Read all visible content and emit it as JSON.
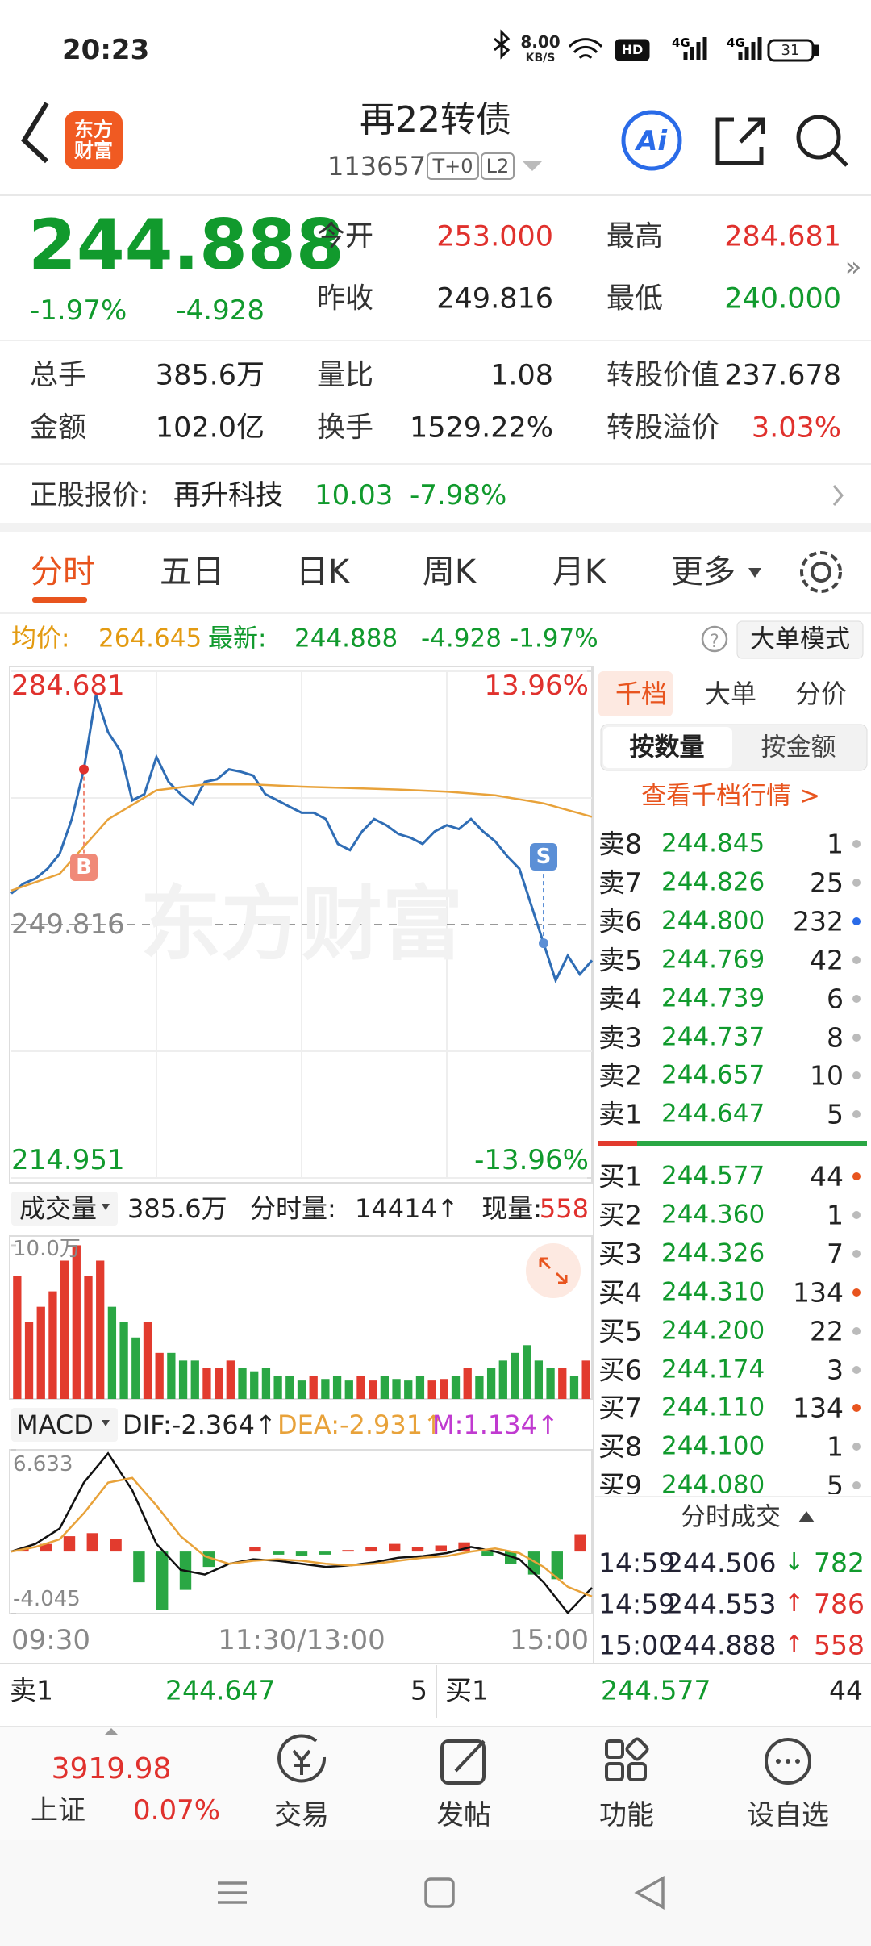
{
  "status_bar": {
    "time": "20:23",
    "net_speed": "8.00",
    "net_unit": "KB/S",
    "battery": "31"
  },
  "header": {
    "logo": "东方财富",
    "title": "再22转债",
    "code": "113657",
    "tags": [
      "T+0",
      "L2"
    ]
  },
  "quote": {
    "price": "244.888",
    "change_pct": "-1.97%",
    "change": "-4.928",
    "fields": [
      [
        "今开",
        "253.000"
      ],
      [
        "最高",
        "284.681"
      ],
      [
        "昨收",
        "249.816"
      ],
      [
        "最低",
        "240.000"
      ],
      [
        "总手",
        "385.6万"
      ],
      [
        "量比",
        "1.08"
      ],
      [
        "转股价值",
        "237.678"
      ],
      [
        "金额",
        "102.0亿"
      ],
      [
        "换手",
        "1529.22%"
      ],
      [
        "转股溢价",
        "3.03%"
      ]
    ]
  },
  "stock_ref": {
    "label": "正股报价:",
    "name": "再升科技",
    "price": "10.03",
    "pct": "-7.98%"
  },
  "tabs": [
    "分时",
    "五日",
    "日K",
    "周K",
    "月K",
    "更多"
  ],
  "info_bar": {
    "avg_label": "均价:",
    "avg": "264.645",
    "latest_label": "最新:",
    "latest": "244.888",
    "change": "-4.928",
    "pct": "-1.97%",
    "mode": "大单模式"
  },
  "price_chart": {
    "type": "line",
    "watermark": "东方财富",
    "ylim": [
      214.951,
      284.681
    ],
    "yticks": [
      284.681,
      249.816,
      214.951
    ],
    "y2lim": [
      -13.96,
      13.96
    ],
    "y2ticks": [
      {
        "value": 13.96,
        "label": "13.96%"
      },
      {
        "value": -13.96,
        "label": "-13.96%"
      }
    ],
    "annotations": [
      {
        "label": "B"
      },
      {
        "label": "S"
      }
    ],
    "series": [
      {
        "color": "#2f6db5",
        "values": [
          254.09,
          255.46,
          256.14,
          257.51,
          259.56,
          264.34,
          271.18,
          281.43,
          276.31,
          273.74,
          266.91,
          267.76,
          272.89,
          269.47,
          267.76,
          266.39,
          269.47,
          269.81,
          271.18,
          270.84,
          270.32,
          267.76,
          266.91,
          266.05,
          265.2,
          265.2,
          264.34,
          260.92,
          260.07,
          262.63,
          264.34,
          263.49,
          262.29,
          261.78,
          260.92,
          262.63,
          263.49,
          262.97,
          264.34,
          262.63,
          261.27,
          259.22,
          257.51,
          252.38,
          247.25,
          242.13,
          245.54,
          242.98,
          244.888
        ]
      },
      {
        "color": "#e8a23a",
        "values": [
          254.5,
          256.8,
          264.3,
          268.3,
          269.1,
          269.1,
          268.8,
          268.6,
          268.4,
          268.1,
          267.6,
          266.5,
          264.645
        ]
      }
    ]
  },
  "volume_chart": {
    "type": "bar",
    "label": "成交量",
    "total": "385.6万",
    "tick_label": "分时量:",
    "tick_value": "14414↑",
    "now_label": "现量:",
    "now_value": "558",
    "ylim": [
      0,
      10.6
    ],
    "yticks": [
      {
        "value": 10,
        "label": "10.0万"
      }
    ],
    "values": [
      8,
      5,
      6,
      7,
      9,
      10,
      8,
      9,
      6,
      5,
      4,
      5,
      3,
      3,
      2.5,
      2.5,
      2,
      2,
      2.5,
      2,
      1.8,
      2,
      1.5,
      1.5,
      1.2,
      1.5,
      1.3,
      1.5,
      1.2,
      1.5,
      1.2,
      1.5,
      1.3,
      1.2,
      1.5,
      1.2,
      1.3,
      1.5,
      2,
      1.5,
      2,
      2.5,
      3,
      3.5,
      2.5,
      2,
      2,
      1.5,
      2.5
    ]
  },
  "macd_chart": {
    "type": "bar",
    "label": "MACD",
    "dif_label": "DIF:-2.364↑",
    "dea_label": "DEA:-2.931↑",
    "m_label": "M:1.134↑",
    "ylim": [
      -4.045,
      6.633
    ],
    "yticks": [
      6.633,
      -4.045
    ],
    "bars": [
      0.2,
      0.5,
      1.0,
      1.2,
      0.8,
      -2.0,
      -3.8,
      -2.5,
      -1.0,
      0.0,
      0.3,
      -0.2,
      -0.3,
      -0.2,
      0.1,
      0.3,
      0.5,
      0.3,
      0.4,
      0.6,
      -0.3,
      -0.8,
      -1.5,
      -1.8,
      1.134
    ],
    "series": [
      {
        "name": "DIF",
        "color": "#111111",
        "values": [
          0,
          0.5,
          1.5,
          4.5,
          6.4,
          4.0,
          0.5,
          -1.2,
          -1.5,
          -0.8,
          -0.5,
          -0.6,
          -0.8,
          -1.0,
          -0.9,
          -0.7,
          -0.4,
          -0.3,
          -0.1,
          0.3,
          0.0,
          -0.5,
          -2.0,
          -4.0,
          -2.364
        ]
      },
      {
        "name": "DEA",
        "color": "#e8a23a",
        "values": [
          0,
          0.3,
          0.8,
          2.5,
          4.5,
          4.8,
          3.0,
          1.0,
          -0.3,
          -0.8,
          -0.6,
          -0.5,
          -0.6,
          -0.8,
          -0.9,
          -0.8,
          -0.6,
          -0.4,
          -0.3,
          0.0,
          0.2,
          -0.1,
          -1.0,
          -2.3,
          -2.931
        ]
      }
    ]
  },
  "time_axis": [
    "09:30",
    "11:30/13:00",
    "15:00"
  ],
  "order_book": {
    "tabs": [
      "千档",
      "大单",
      "分价"
    ],
    "subtabs": [
      "按数量",
      "按金额"
    ],
    "link": "查看千档行情 >",
    "sells": [
      [
        "卖8",
        "244.845",
        "1"
      ],
      [
        "卖7",
        "244.826",
        "25"
      ],
      [
        "卖6",
        "244.800",
        "232"
      ],
      [
        "卖5",
        "244.769",
        "42"
      ],
      [
        "卖4",
        "244.739",
        "6"
      ],
      [
        "卖3",
        "244.737",
        "8"
      ],
      [
        "卖2",
        "244.657",
        "10"
      ],
      [
        "卖1",
        "244.647",
        "5"
      ]
    ],
    "buys": [
      [
        "买1",
        "244.577",
        "44"
      ],
      [
        "买2",
        "244.360",
        "1"
      ],
      [
        "买3",
        "244.326",
        "7"
      ],
      [
        "买4",
        "244.310",
        "134"
      ],
      [
        "买5",
        "244.200",
        "22"
      ],
      [
        "买6",
        "244.174",
        "3"
      ],
      [
        "买7",
        "244.110",
        "134"
      ],
      [
        "买8",
        "244.100",
        "1"
      ],
      [
        "买9",
        "244.080",
        "5"
      ]
    ]
  },
  "trades": {
    "title": "分时成交",
    "rows": [
      [
        "14:59",
        "244.506",
        "↓",
        "782"
      ],
      [
        "14:59",
        "244.553",
        "↑",
        "786"
      ],
      [
        "15:00",
        "244.888",
        "↑",
        "558"
      ]
    ]
  },
  "bottom_bar": {
    "sell": [
      "卖1",
      "244.647",
      "5"
    ],
    "buy": [
      "买1",
      "244.577",
      "44"
    ]
  },
  "bottom_nav": {
    "index_value": "3919.98",
    "index_name": "上证",
    "index_pct": "0.07%",
    "items": [
      "交易",
      "发帖",
      "功能",
      "设自选"
    ]
  }
}
